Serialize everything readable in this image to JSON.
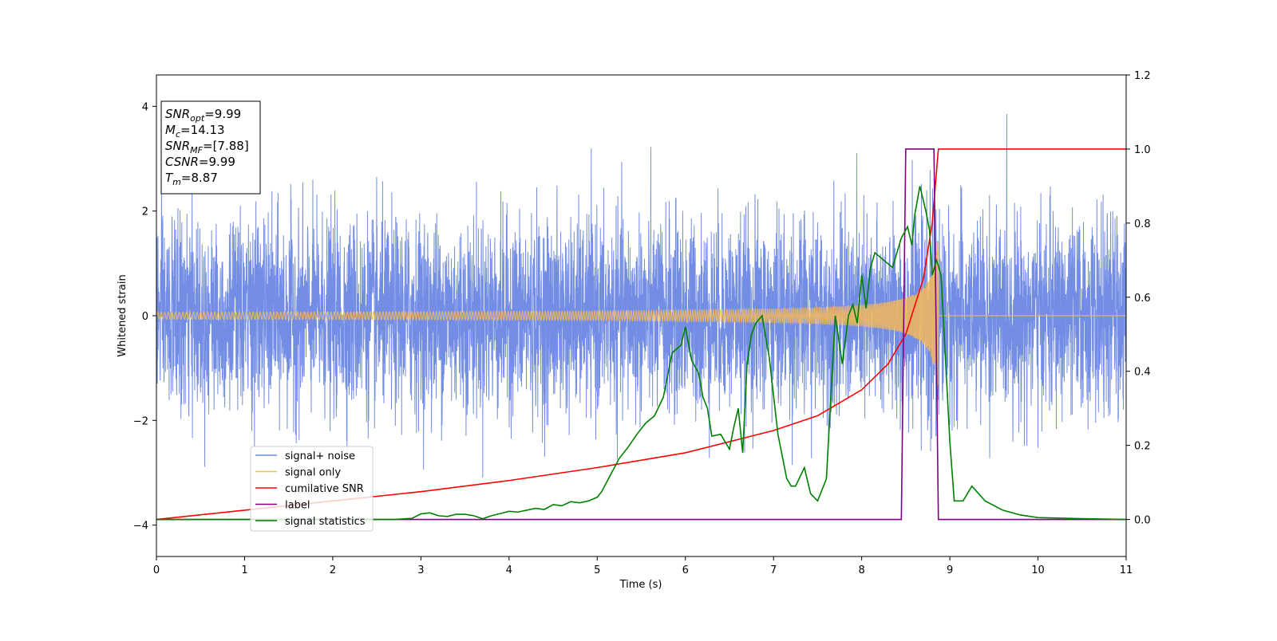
{
  "chart_data": {
    "type": "line",
    "xlabel": "Time (s)",
    "ylabel": "Whitened strain",
    "xlim": [
      0,
      11
    ],
    "ylim_left": [
      -4.6,
      4.6
    ],
    "ylim_right": [
      -0.1,
      1.2
    ],
    "xticks": [
      0,
      1,
      2,
      3,
      4,
      5,
      6,
      7,
      8,
      9,
      10,
      11
    ],
    "yticks_left": [
      -4,
      -2,
      0,
      2,
      4
    ],
    "yticks_right": [
      0.0,
      0.2,
      0.4,
      0.6,
      0.8,
      1.0,
      1.2
    ],
    "legend_position": "lower-left",
    "grid": false,
    "annotation": {
      "lines": [
        {
          "var": "SNR",
          "sub": "opt",
          "value": "=9.99"
        },
        {
          "var": "M",
          "sub": "c",
          "value": "=14.13"
        },
        {
          "var": "SNR",
          "sub": "MF",
          "value": "=[7.88]"
        },
        {
          "var": "CSNR",
          "sub": "",
          "value": "=9.99"
        },
        {
          "var": "T",
          "sub": "m",
          "value": "=8.87"
        }
      ]
    },
    "series": [
      {
        "name": "signal+ noise",
        "color": "#6b87e4",
        "axis": "left",
        "kind": "noise",
        "typical_amplitude": 0.9,
        "peak_range": [
          -4.1,
          4.2
        ]
      },
      {
        "name": "signal only",
        "color": "#f5b95a",
        "axis": "left",
        "kind": "chirp",
        "merger_time": 8.87,
        "peak_amplitude": 1.7
      },
      {
        "name": "cumilative SNR",
        "color": "#ff0000",
        "axis": "right",
        "x": [
          0,
          1,
          2,
          3,
          4,
          5,
          6,
          7,
          7.5,
          8,
          8.3,
          8.5,
          8.7,
          8.8,
          8.87,
          8.88,
          11
        ],
        "y": [
          0.0,
          0.025,
          0.05,
          0.075,
          0.105,
          0.14,
          0.18,
          0.24,
          0.28,
          0.35,
          0.42,
          0.5,
          0.65,
          0.8,
          1.0,
          1.0,
          1.0
        ]
      },
      {
        "name": "label",
        "color": "#800080",
        "axis": "right",
        "x": [
          0,
          8.45,
          8.5,
          8.82,
          8.87,
          11
        ],
        "y": [
          0,
          0,
          1,
          1,
          0,
          0
        ]
      },
      {
        "name": "signal statistics",
        "color": "#008000",
        "axis": "right",
        "x": [
          0,
          0.5,
          1,
          1.5,
          2,
          2.5,
          2.7,
          2.9,
          3.0,
          3.1,
          3.2,
          3.3,
          3.4,
          3.5,
          3.6,
          3.7,
          3.8,
          3.9,
          4.0,
          4.1,
          4.2,
          4.3,
          4.4,
          4.5,
          4.6,
          4.7,
          4.8,
          4.9,
          5.0,
          5.05,
          5.15,
          5.25,
          5.35,
          5.45,
          5.55,
          5.65,
          5.75,
          5.85,
          5.95,
          6.0,
          6.07,
          6.15,
          6.2,
          6.25,
          6.3,
          6.4,
          6.5,
          6.55,
          6.6,
          6.65,
          6.7,
          6.75,
          6.8,
          6.87,
          6.95,
          7.05,
          7.15,
          7.2,
          7.25,
          7.35,
          7.42,
          7.5,
          7.6,
          7.7,
          7.78,
          7.85,
          7.9,
          7.95,
          8.0,
          8.05,
          8.1,
          8.15,
          8.25,
          8.35,
          8.45,
          8.52,
          8.57,
          8.6,
          8.66,
          8.73,
          8.77,
          8.8,
          8.85,
          8.9,
          9.0,
          9.05,
          9.15,
          9.25,
          9.4,
          9.6,
          9.8,
          10.0,
          10.5,
          11
        ],
        "y": [
          0.0,
          0.0,
          0.0,
          0.0,
          0.0,
          0.0,
          0.0,
          0.003,
          0.015,
          0.018,
          0.01,
          0.008,
          0.014,
          0.014,
          0.01,
          0.002,
          0.01,
          0.016,
          0.022,
          0.02,
          0.025,
          0.03,
          0.027,
          0.04,
          0.037,
          0.048,
          0.045,
          0.05,
          0.06,
          0.075,
          0.12,
          0.165,
          0.195,
          0.23,
          0.26,
          0.28,
          0.33,
          0.45,
          0.47,
          0.52,
          0.43,
          0.395,
          0.33,
          0.3,
          0.225,
          0.23,
          0.19,
          0.25,
          0.3,
          0.18,
          0.42,
          0.5,
          0.53,
          0.55,
          0.44,
          0.23,
          0.11,
          0.09,
          0.09,
          0.14,
          0.07,
          0.05,
          0.11,
          0.55,
          0.42,
          0.55,
          0.58,
          0.53,
          0.66,
          0.57,
          0.68,
          0.72,
          0.7,
          0.68,
          0.76,
          0.79,
          0.74,
          0.82,
          0.9,
          0.83,
          0.78,
          0.66,
          0.7,
          0.66,
          0.21,
          0.05,
          0.05,
          0.09,
          0.05,
          0.025,
          0.012,
          0.005,
          0.002,
          0.0
        ]
      }
    ]
  }
}
